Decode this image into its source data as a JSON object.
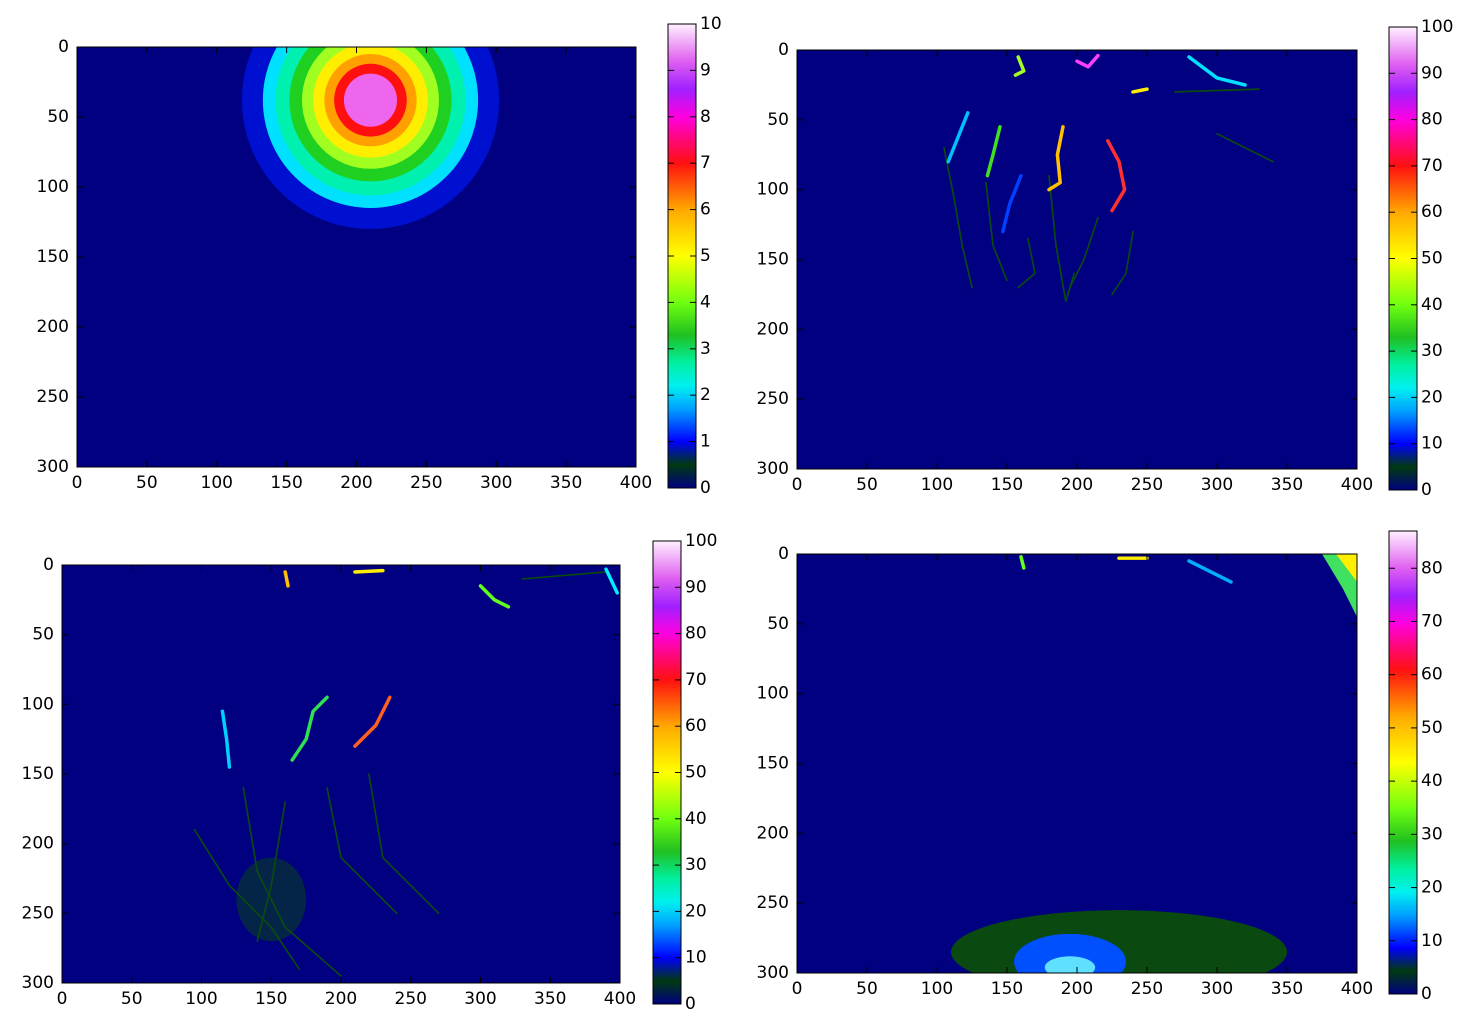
{
  "chart_data": [
    {
      "type": "heatmap",
      "colormap": "gist_ncar",
      "xlim": [
        0,
        400
      ],
      "ylim": [
        300,
        0
      ],
      "xticks": [
        0,
        50,
        100,
        150,
        200,
        250,
        300,
        350,
        400
      ],
      "yticks": [
        0,
        50,
        100,
        150,
        200,
        250,
        300
      ],
      "clim": [
        0,
        10
      ],
      "cticks": [
        0,
        1,
        2,
        3,
        4,
        5,
        6,
        7,
        8,
        9,
        10
      ]
    },
    {
      "type": "heatmap",
      "colormap": "gist_ncar",
      "xlim": [
        0,
        400
      ],
      "ylim": [
        300,
        0
      ],
      "xticks": [
        0,
        50,
        100,
        150,
        200,
        250,
        300,
        350,
        400
      ],
      "yticks": [
        0,
        50,
        100,
        150,
        200,
        250,
        300
      ],
      "clim": [
        0,
        100
      ],
      "cticks": [
        0,
        10,
        20,
        30,
        40,
        50,
        60,
        70,
        80,
        90,
        100
      ]
    },
    {
      "type": "heatmap",
      "colormap": "gist_ncar",
      "xlim": [
        0,
        400
      ],
      "ylim": [
        300,
        0
      ],
      "xticks": [
        0,
        50,
        100,
        150,
        200,
        250,
        300,
        350,
        400
      ],
      "yticks": [
        0,
        50,
        100,
        150,
        200,
        250,
        300
      ],
      "clim": [
        0,
        100
      ],
      "cticks": [
        0,
        10,
        20,
        30,
        40,
        50,
        60,
        70,
        80,
        90,
        100
      ]
    },
    {
      "type": "heatmap",
      "colormap": "gist_ncar",
      "xlim": [
        0,
        400
      ],
      "ylim": [
        300,
        0
      ],
      "xticks": [
        0,
        50,
        100,
        150,
        200,
        250,
        300,
        350,
        400
      ],
      "yticks": [
        0,
        50,
        100,
        150,
        200,
        250,
        300
      ],
      "clim": [
        0,
        87
      ],
      "cticks": [
        0,
        10,
        20,
        30,
        40,
        50,
        60,
        70,
        80
      ]
    }
  ]
}
